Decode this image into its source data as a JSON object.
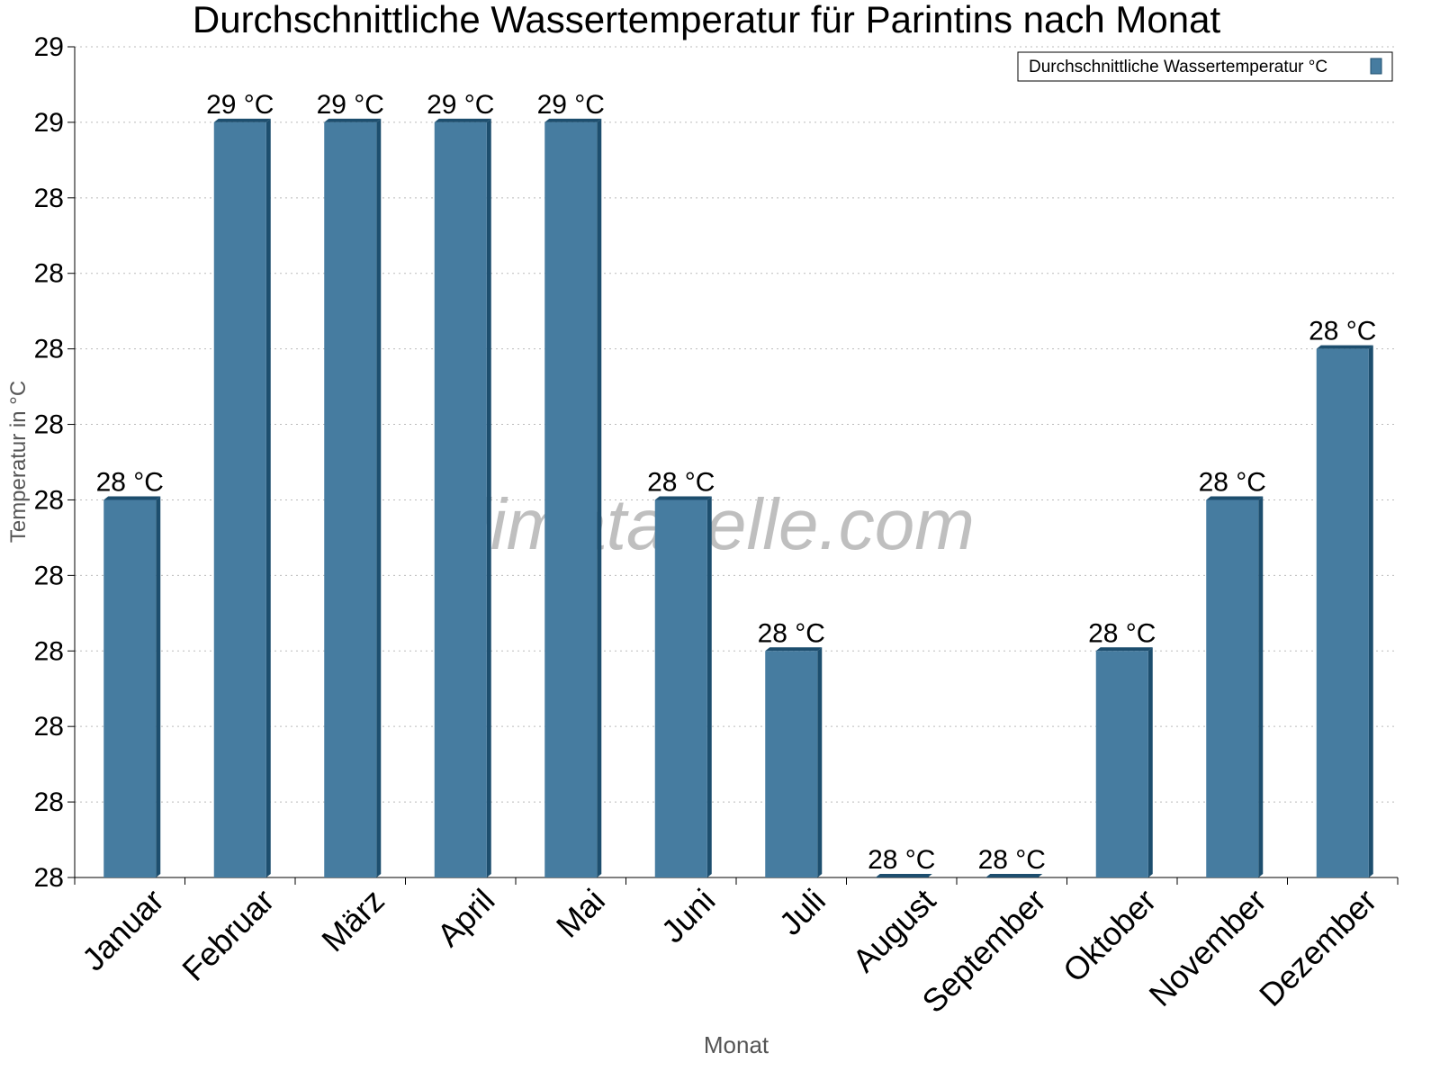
{
  "chart_data": {
    "type": "bar",
    "title": "Durchschnittliche Wassertemperatur für Parintins nach Monat",
    "x_label": "Monat",
    "y_label": "Temperatur in °C",
    "watermark": "klimatabelle.com",
    "categories": [
      "Januar",
      "Februar",
      "März",
      "April",
      "Mai",
      "Juni",
      "Juli",
      "August",
      "September",
      "Oktober",
      "November",
      "Dezember"
    ],
    "series": [
      {
        "name": "Durchschnittliche Wassertemperatur °C",
        "color": "#467ca0",
        "values": [
          28.25,
          28.5,
          28.5,
          28.5,
          28.5,
          28.25,
          28.15,
          28.0,
          28.0,
          28.15,
          28.25,
          28.35
        ],
        "value_labels": [
          "28 °C",
          "29 °C",
          "29 °C",
          "29 °C",
          "29 °C",
          "28 °C",
          "28 °C",
          "28 °C",
          "28 °C",
          "28 °C",
          "28 °C",
          "28 °C"
        ]
      }
    ],
    "ylim": [
      28.0,
      28.55
    ],
    "yticks": [
      {
        "value": 28.0,
        "label": "28"
      },
      {
        "value": 28.05,
        "label": "28"
      },
      {
        "value": 28.1,
        "label": "28"
      },
      {
        "value": 28.15,
        "label": "28"
      },
      {
        "value": 28.2,
        "label": "28"
      },
      {
        "value": 28.25,
        "label": "28"
      },
      {
        "value": 28.3,
        "label": "28"
      },
      {
        "value": 28.35,
        "label": "28"
      },
      {
        "value": 28.4,
        "label": "28"
      },
      {
        "value": 28.45,
        "label": "28"
      },
      {
        "value": 28.5,
        "label": "29"
      },
      {
        "value": 28.55,
        "label": "29"
      }
    ],
    "grid": true,
    "legend": "top-right"
  }
}
